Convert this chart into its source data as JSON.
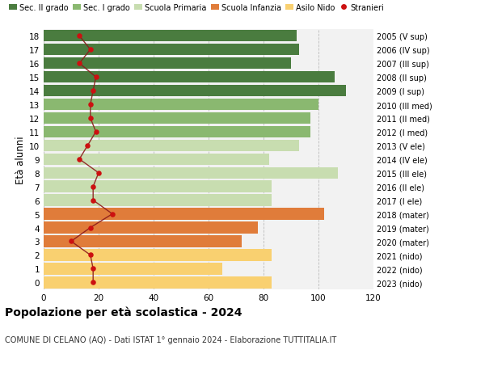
{
  "ages": [
    0,
    1,
    2,
    3,
    4,
    5,
    6,
    7,
    8,
    9,
    10,
    11,
    12,
    13,
    14,
    15,
    16,
    17,
    18
  ],
  "bar_values": [
    83,
    65,
    83,
    72,
    78,
    102,
    83,
    83,
    107,
    82,
    93,
    97,
    97,
    100,
    110,
    106,
    90,
    93,
    92
  ],
  "bar_colors": [
    "#f9d070",
    "#f9d070",
    "#f9d070",
    "#e07c3a",
    "#e07c3a",
    "#e07c3a",
    "#c8ddb0",
    "#c8ddb0",
    "#c8ddb0",
    "#c8ddb0",
    "#c8ddb0",
    "#8ab870",
    "#8ab870",
    "#8ab870",
    "#4a7c3f",
    "#4a7c3f",
    "#4a7c3f",
    "#4a7c3f",
    "#4a7c3f"
  ],
  "stranieri_values": [
    18,
    18,
    17,
    10,
    17,
    25,
    18,
    18,
    20,
    13,
    16,
    19,
    17,
    17,
    18,
    19,
    13,
    17,
    13
  ],
  "right_labels": [
    "2023 (nido)",
    "2022 (nido)",
    "2021 (nido)",
    "2020 (mater)",
    "2019 (mater)",
    "2018 (mater)",
    "2017 (I ele)",
    "2016 (II ele)",
    "2015 (III ele)",
    "2014 (IV ele)",
    "2013 (V ele)",
    "2012 (I med)",
    "2011 (II med)",
    "2010 (III med)",
    "2009 (I sup)",
    "2008 (II sup)",
    "2007 (III sup)",
    "2006 (IV sup)",
    "2005 (V sup)"
  ],
  "legend_labels": [
    "Sec. II grado",
    "Sec. I grado",
    "Scuola Primaria",
    "Scuola Infanzia",
    "Asilo Nido",
    "Stranieri"
  ],
  "legend_colors": [
    "#4a7c3f",
    "#8ab870",
    "#c8ddb0",
    "#e07c3a",
    "#f9d070",
    "#cc0000"
  ],
  "ylabel_left": "Età alunni",
  "title": "Popolazione per età scolastica - 2024",
  "subtitle": "COMUNE DI CELANO (AQ) - Dati ISTAT 1° gennaio 2024 - Elaborazione TUTTITALIA.IT",
  "xlim": [
    0,
    120
  ],
  "background_color": "#ffffff",
  "bar_background": "#f2f2f2"
}
